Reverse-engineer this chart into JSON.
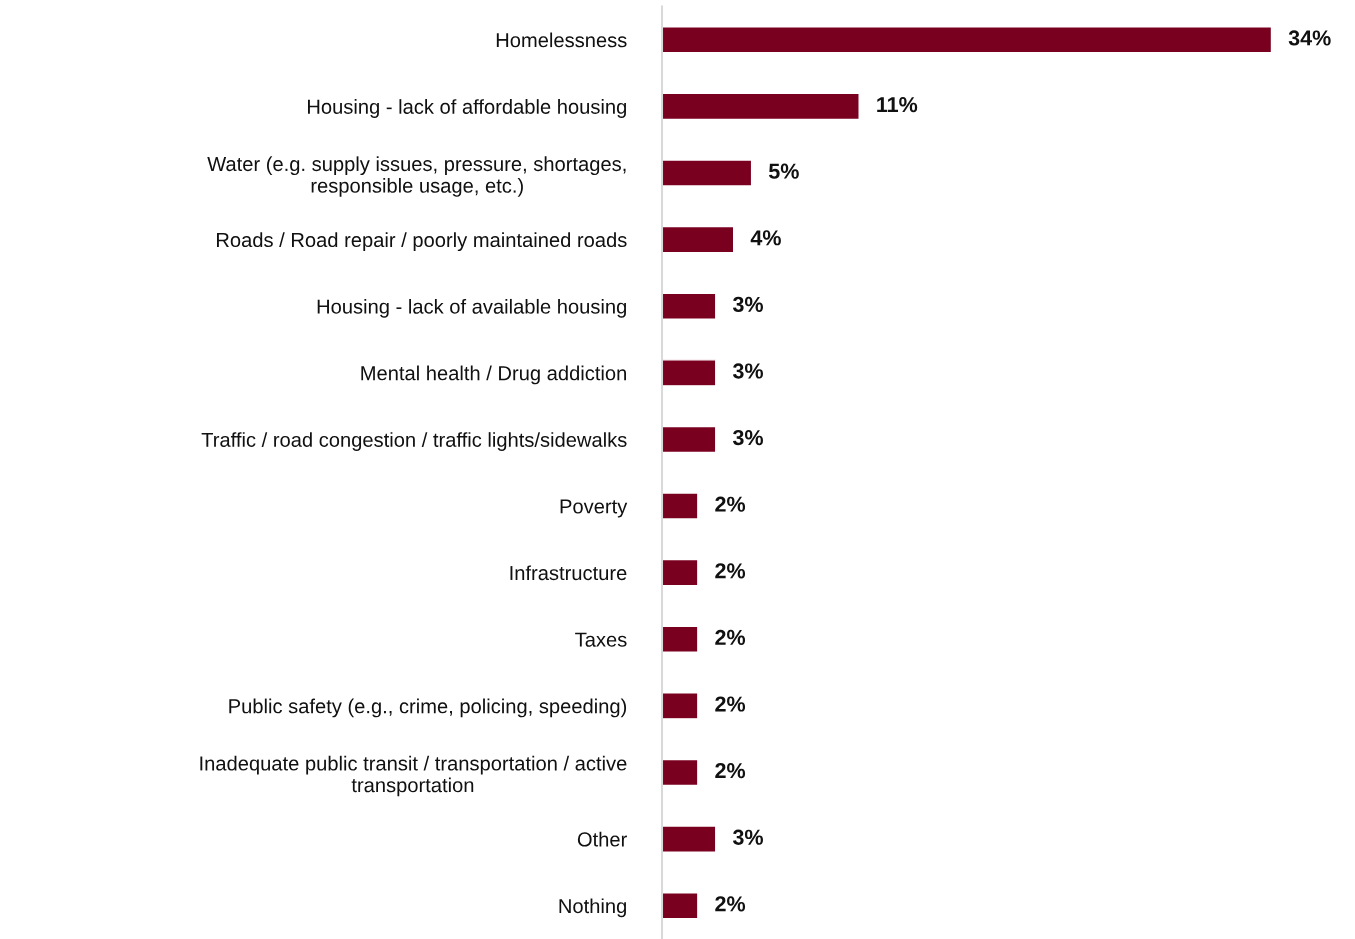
{
  "chart_data": {
    "type": "bar",
    "orientation": "horizontal",
    "categories": [
      "Homelessness",
      "Housing - lack of affordable housing",
      "Water (e.g. supply issues, pressure, shortages,\nresponsible usage, etc.)",
      "Roads / Road repair / poorly maintained roads",
      "Housing - lack of available housing",
      "Mental health / Drug addiction",
      "Traffic / road congestion / traffic lights/sidewalks",
      "Poverty",
      "Infrastructure",
      "Taxes",
      "Public safety (e.g., crime, policing, speeding)",
      "Inadequate public transit / transportation / active\ntransportation",
      "Other",
      "Nothing"
    ],
    "values": [
      34,
      11,
      5,
      4,
      3,
      3,
      3,
      2,
      2,
      2,
      2,
      2,
      3,
      2
    ],
    "value_labels": [
      "34%",
      "11%",
      "5%",
      "4%",
      "3%",
      "3%",
      "3%",
      "2%",
      "2%",
      "2%",
      "2%",
      "2%",
      "3%",
      "2%"
    ],
    "color": "#7a0020",
    "grid": false,
    "legend": false
  }
}
